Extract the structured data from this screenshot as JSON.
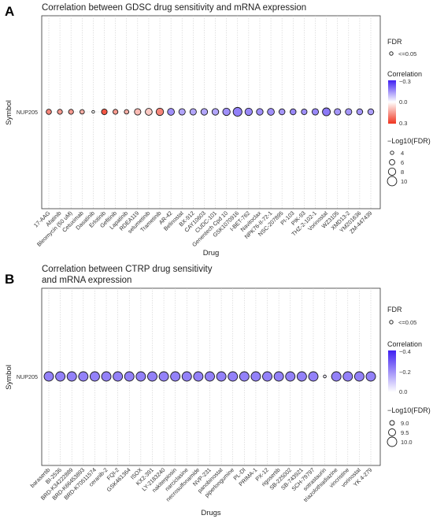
{
  "chart_data": [
    {
      "panel": "A",
      "type": "scatter",
      "title": "Correlation between GDSC drug sensitivity and mRNA expression",
      "xlabel": "Drug",
      "ylabel": "Symbol",
      "y_categories": [
        "NUP205"
      ],
      "categories": [
        "17-AAG",
        "Afatinib",
        "Bleomycin (50 uM)",
        "Cetuximab",
        "Dasatinib",
        "Erlotinib",
        "Gefitinib",
        "Lapatinib",
        "RDEA119",
        "selumetinib",
        "Trametinib",
        "AR-42",
        "Belinostat",
        "BX-912",
        "CAY10603",
        "CUDC-101",
        "Genentech Cpd 10",
        "GSK1070916",
        "I-BET-762",
        "Navitoclax",
        "NPK76-II-72-1",
        "NSC-207895",
        "PI-103",
        "PIK-93",
        "THZ-2-102-1",
        "Vorinostat",
        "WZ3105",
        "XMD13-2",
        "YM201636",
        "ZM-447439"
      ],
      "correlation": [
        0.18,
        0.15,
        0.15,
        0.12,
        0.0,
        0.25,
        0.15,
        0.12,
        0.1,
        0.08,
        0.18,
        -0.15,
        -0.12,
        -0.12,
        -0.12,
        -0.12,
        -0.15,
        -0.17,
        -0.16,
        -0.15,
        -0.15,
        -0.14,
        -0.16,
        -0.15,
        -0.16,
        -0.18,
        -0.14,
        -0.14,
        -0.14,
        -0.13
      ],
      "neg_log10_fdr": [
        5.8,
        5.5,
        5.5,
        5.0,
        3.2,
        6.2,
        5.5,
        5.0,
        7.0,
        7.5,
        8.0,
        7.5,
        7.0,
        7.0,
        7.2,
        7.2,
        8.0,
        9.5,
        8.0,
        7.2,
        7.5,
        6.5,
        6.5,
        6.2,
        7.0,
        8.5,
        7.0,
        7.0,
        6.5,
        6.5
      ],
      "legend": {
        "fdr_title": "FDR",
        "fdr_label": "<=0.05",
        "color_title": "Correlation",
        "color_ticks": [
          "−0.3",
          "0.0",
          "0.3"
        ],
        "color_low": "#3f1ff2",
        "color_mid": "#ffffff",
        "color_high": "#f0341f",
        "size_title": "−Log10(FDR)",
        "size_ticks": [
          4,
          6,
          8,
          10
        ]
      }
    },
    {
      "panel": "B",
      "type": "scatter",
      "title_lines": [
        "Correlation between CTRP drug sensitivity",
        "and mRNA expression"
      ],
      "xlabel": "Drugs",
      "ylabel": "Symbol",
      "y_categories": [
        "NUP205"
      ],
      "categories": [
        "barasertib",
        "BI-2536",
        "BRD-K34222889",
        "BRD-K66453893",
        "BRD-K70511574",
        "ceranib-2",
        "FQI-2",
        "GSK461364",
        "ISOX",
        "KX2-391",
        "LY-2183240",
        "nakiterpiosin",
        "narciclasine",
        "necrosulfonamide",
        "NVP-231",
        "panobinostat",
        "piperlongumine",
        "PL-DI",
        "PRIMA-1",
        "PX-12",
        "rigosertib",
        "SB-225002",
        "SB-743921",
        "SCH-79797",
        "sotrastaurin",
        "triazolothiadiazine",
        "vincristine",
        "vorinostat",
        "YK 4-279"
      ],
      "correlation": [
        -0.3,
        -0.3,
        -0.3,
        -0.3,
        -0.3,
        -0.3,
        -0.3,
        -0.3,
        -0.3,
        -0.3,
        -0.3,
        -0.3,
        -0.3,
        -0.3,
        -0.3,
        -0.3,
        -0.3,
        -0.3,
        -0.3,
        -0.3,
        -0.3,
        -0.3,
        -0.3,
        -0.3,
        -0.05,
        -0.3,
        -0.3,
        -0.3,
        -0.3
      ],
      "neg_log10_fdr": [
        10,
        10,
        10,
        10,
        10,
        10,
        10,
        10,
        10,
        10,
        10,
        10,
        10,
        10,
        10,
        10,
        10,
        10,
        10,
        10,
        10,
        10,
        10,
        10,
        8.3,
        10,
        10,
        10,
        10
      ],
      "legend": {
        "fdr_title": "FDR",
        "fdr_label": "<=0.05",
        "color_title": "Correlation",
        "color_ticks": [
          "−0.4",
          "−0.2",
          "0.0"
        ],
        "color_low": "#3f1ff2",
        "color_mid": "#ffffff",
        "size_title": "−Log10(FDR)",
        "size_ticks": [
          9.0,
          9.5,
          10.0
        ]
      }
    }
  ]
}
